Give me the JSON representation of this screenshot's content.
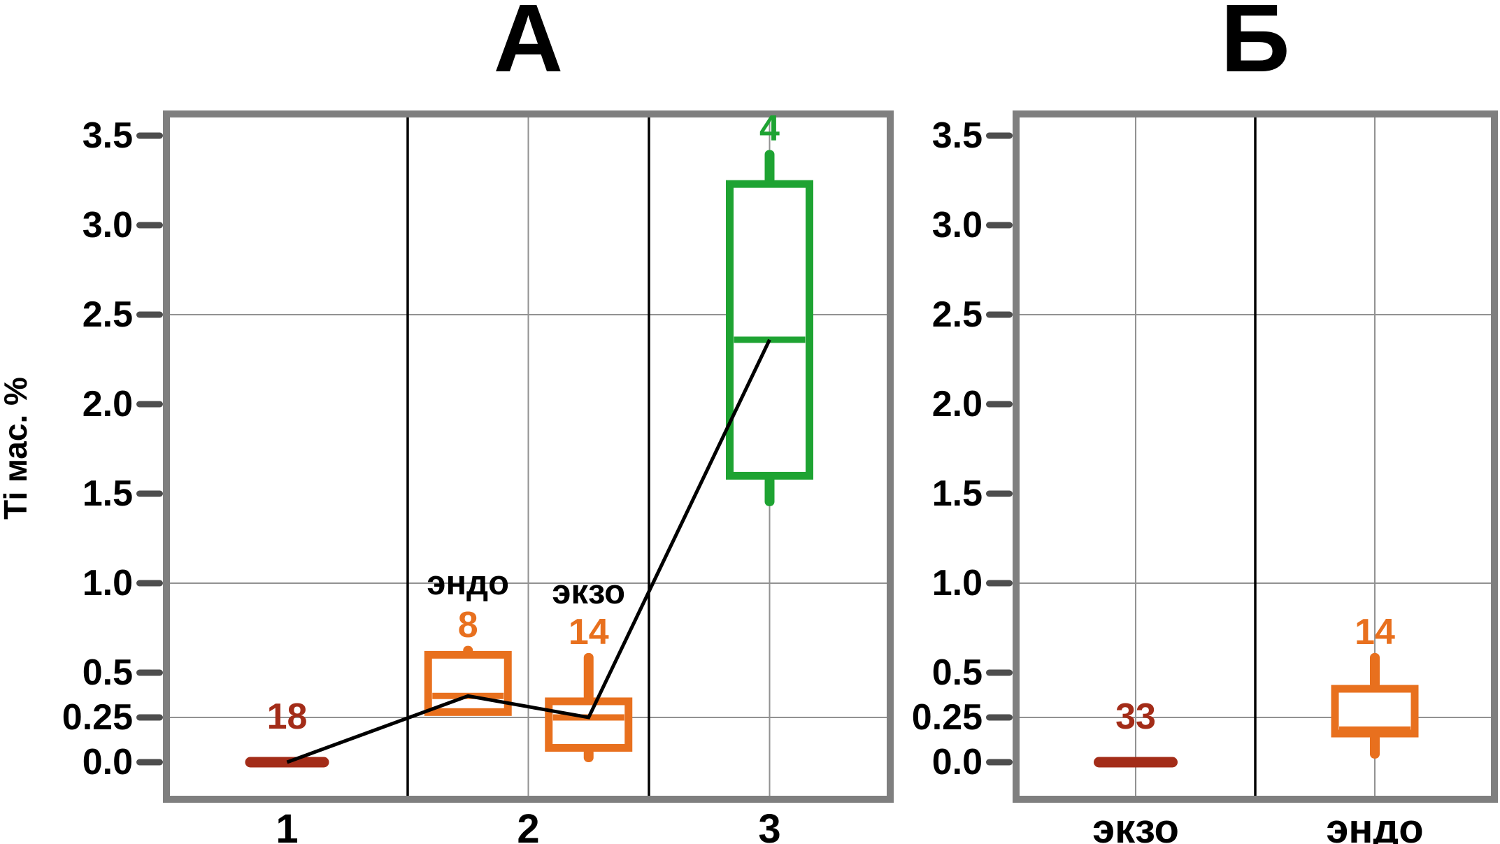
{
  "colors": {
    "orange": "#E8701E",
    "dark_red": "#A32C18",
    "green": "#1EA332",
    "frame": "#7F7F7F",
    "tick": "#4D4D4D",
    "gridline": "#929292",
    "separator": "#000000",
    "connector": "#000000",
    "text": "#000000"
  },
  "chart_data": [
    {
      "type": "boxplot",
      "title": "А",
      "ylabel": "Ti мас. %",
      "ylim": [
        -0.2,
        3.62
      ],
      "xlim": [
        0.5,
        3.5
      ],
      "y_ticks": [
        3.5,
        3.0,
        2.5,
        2.0,
        1.5,
        1.0,
        0.5,
        0.25,
        0.0
      ],
      "y_tick_labels": [
        "3.5",
        "3.0",
        "2.5",
        "2.0",
        "1.5",
        "1.0",
        "0.5",
        "0.25",
        "0.0"
      ],
      "y_gridlines": [
        2.5,
        1.0,
        0.25
      ],
      "x_gridlines": [
        2,
        3
      ],
      "separators": [
        1.5,
        2.5
      ],
      "categories": [
        {
          "x": 1,
          "label": "1"
        },
        {
          "x": 2,
          "label": "2"
        },
        {
          "x": 3,
          "label": "3"
        }
      ],
      "annotations": [
        {
          "text": "эндо",
          "x": 1.75,
          "y": 1.0
        },
        {
          "text": "экзо",
          "x": 2.25,
          "y": 0.95
        }
      ],
      "connector_line": true,
      "series": [
        {
          "x": 1,
          "count_label": "18",
          "color_key": "dark_red",
          "kind": "line",
          "median": 0.0
        },
        {
          "x": 1.75,
          "count_label": "8",
          "color_key": "orange",
          "kind": "box",
          "whisker_low": null,
          "q1": 0.28,
          "median": 0.37,
          "q3": 0.6,
          "whisker_high": 0.65,
          "median_thin": false
        },
        {
          "x": 2.25,
          "count_label": "14",
          "color_key": "orange",
          "kind": "box",
          "whisker_low": 0.0,
          "q1": 0.08,
          "median": 0.25,
          "q3": 0.34,
          "whisker_high": 0.61,
          "median_thin": false
        },
        {
          "x": 3,
          "count_label": "4",
          "color_key": "green",
          "kind": "box",
          "whisker_low": 1.43,
          "q1": 1.6,
          "median": 2.36,
          "q3": 3.23,
          "whisker_high": 3.42,
          "median_thin": false
        }
      ]
    },
    {
      "type": "boxplot",
      "title": "Б",
      "ylabel": "",
      "ylim": [
        -0.2,
        3.62
      ],
      "xlim": [
        0.5,
        2.5
      ],
      "y_ticks": [
        3.5,
        3.0,
        2.5,
        2.0,
        1.5,
        1.0,
        0.5,
        0.25,
        0.0
      ],
      "y_tick_labels": [
        "3.5",
        "3.0",
        "2.5",
        "2.0",
        "1.5",
        "1.0",
        "0.5",
        "0.25",
        "0.0"
      ],
      "y_gridlines": [
        2.5,
        1.0,
        0.25
      ],
      "x_gridlines": [
        1,
        2
      ],
      "separators": [
        1.5
      ],
      "categories": [
        {
          "x": 1,
          "label": "экзо"
        },
        {
          "x": 2,
          "label": "эндо"
        }
      ],
      "annotations": [],
      "connector_line": false,
      "series": [
        {
          "x": 1,
          "count_label": "33",
          "color_key": "dark_red",
          "kind": "line",
          "median": 0.0
        },
        {
          "x": 2,
          "count_label": "14",
          "color_key": "orange",
          "kind": "box",
          "whisker_low": 0.02,
          "q1": 0.16,
          "median": 0.19,
          "q3": 0.41,
          "whisker_high": 0.61,
          "median_thin": true
        }
      ]
    }
  ]
}
